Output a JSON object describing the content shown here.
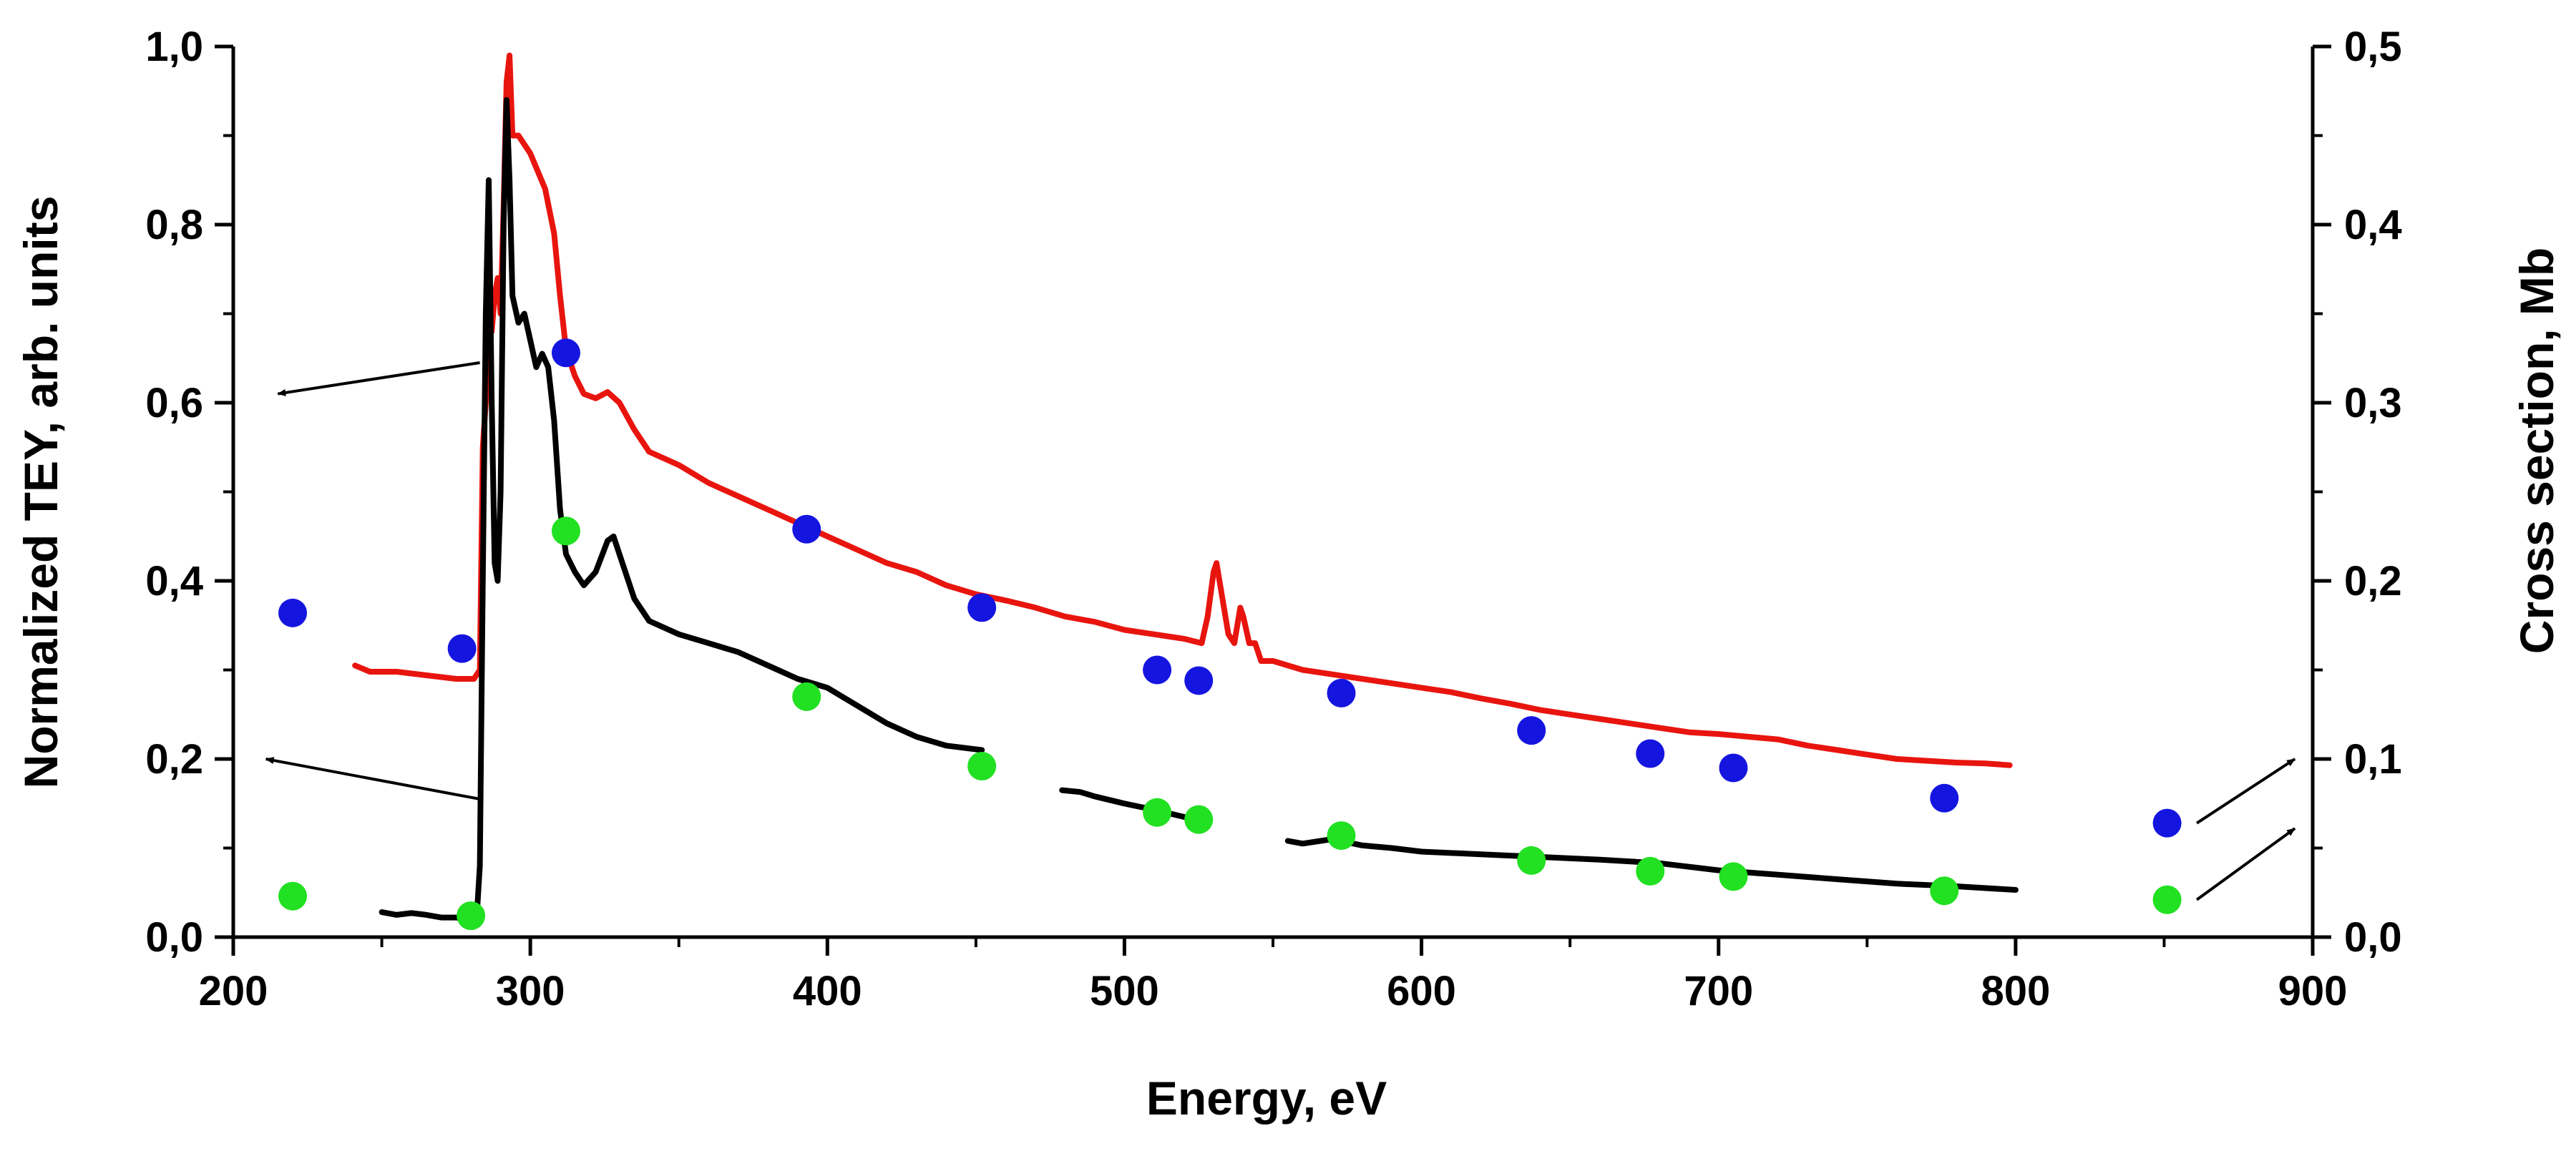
{
  "chart_data": {
    "type": "line+scatter",
    "xlabel": "Energy, eV",
    "ylabel_left": "Normalized TEY, arb. units",
    "ylabel_right": "Cross section, Mb",
    "xlim": [
      200,
      900
    ],
    "ylim_left": [
      0.0,
      1.0
    ],
    "ylim_right": [
      0.0,
      0.5
    ],
    "x_ticks": [
      "200",
      "300",
      "400",
      "500",
      "600",
      "700",
      "800",
      "900"
    ],
    "y_left_ticks": [
      "0,0",
      "0,2",
      "0,4",
      "0,6",
      "0,8",
      "1,0"
    ],
    "y_right_ticks": [
      "0,0",
      "0,1",
      "0,2",
      "0,3",
      "0,4",
      "0,5"
    ],
    "colors": {
      "red_line": "#e8150f",
      "black_line": "#000000",
      "blue_points": "#1515e0",
      "green_points": "#22e022"
    },
    "series": [
      {
        "name": "red TEY spectrum",
        "kind": "line",
        "axis": "left",
        "color": "#e8150f",
        "segments": [
          [
            [
              241,
              0.305
            ],
            [
              246,
              0.298
            ],
            [
              255,
              0.298
            ],
            [
              265,
              0.294
            ],
            [
              275,
              0.29
            ],
            [
              281,
              0.29
            ],
            [
              283,
              0.3
            ],
            [
              284,
              0.55
            ],
            [
              285,
              0.6
            ],
            [
              286,
              0.7
            ],
            [
              287,
              0.68
            ],
            [
              288,
              0.72
            ],
            [
              289,
              0.74
            ],
            [
              290,
              0.7
            ],
            [
              291,
              0.82
            ],
            [
              292,
              0.96
            ],
            [
              293,
              0.99
            ],
            [
              294,
              0.9
            ],
            [
              296,
              0.9
            ],
            [
              300,
              0.88
            ],
            [
              305,
              0.84
            ],
            [
              308,
              0.79
            ],
            [
              310,
              0.72
            ],
            [
              312,
              0.66
            ],
            [
              315,
              0.63
            ],
            [
              318,
              0.61
            ],
            [
              322,
              0.605
            ],
            [
              326,
              0.612
            ],
            [
              330,
              0.6
            ],
            [
              335,
              0.57
            ],
            [
              340,
              0.545
            ],
            [
              350,
              0.53
            ],
            [
              360,
              0.51
            ],
            [
              370,
              0.495
            ],
            [
              380,
              0.48
            ],
            [
              390,
              0.465
            ],
            [
              400,
              0.45
            ],
            [
              410,
              0.435
            ],
            [
              420,
              0.42
            ],
            [
              430,
              0.41
            ],
            [
              440,
              0.395
            ],
            [
              450,
              0.385
            ],
            [
              460,
              0.378
            ],
            [
              470,
              0.37
            ],
            [
              480,
              0.36
            ],
            [
              490,
              0.354
            ],
            [
              500,
              0.345
            ],
            [
              510,
              0.34
            ],
            [
              520,
              0.335
            ],
            [
              526,
              0.33
            ],
            [
              528,
              0.36
            ],
            [
              530,
              0.41
            ],
            [
              531,
              0.42
            ],
            [
              533,
              0.38
            ],
            [
              535,
              0.34
            ],
            [
              537,
              0.33
            ],
            [
              539,
              0.37
            ],
            [
              540,
              0.36
            ],
            [
              542,
              0.33
            ],
            [
              544,
              0.33
            ],
            [
              546,
              0.31
            ],
            [
              550,
              0.31
            ],
            [
              560,
              0.3
            ],
            [
              570,
              0.295
            ],
            [
              580,
              0.29
            ],
            [
              590,
              0.285
            ],
            [
              600,
              0.28
            ],
            [
              610,
              0.275
            ],
            [
              620,
              0.268
            ],
            [
              630,
              0.262
            ],
            [
              640,
              0.255
            ],
            [
              650,
              0.25
            ],
            [
              660,
              0.245
            ],
            [
              670,
              0.24
            ],
            [
              680,
              0.235
            ],
            [
              690,
              0.23
            ],
            [
              700,
              0.228
            ],
            [
              710,
              0.225
            ],
            [
              720,
              0.222
            ],
            [
              730,
              0.215
            ],
            [
              740,
              0.21
            ],
            [
              750,
              0.205
            ],
            [
              760,
              0.2
            ],
            [
              770,
              0.198
            ],
            [
              780,
              0.196
            ],
            [
              790,
              0.195
            ],
            [
              798,
              0.193
            ]
          ]
        ]
      },
      {
        "name": "black TEY spectrum",
        "kind": "line",
        "axis": "left",
        "color": "#000000",
        "segments": [
          [
            [
              250,
              0.028
            ],
            [
              255,
              0.025
            ],
            [
              260,
              0.027
            ],
            [
              265,
              0.025
            ],
            [
              270,
              0.022
            ],
            [
              275,
              0.022
            ],
            [
              280,
              0.02
            ],
            [
              282,
              0.025
            ],
            [
              283,
              0.08
            ],
            [
              284,
              0.4
            ],
            [
              285,
              0.7
            ],
            [
              286,
              0.85
            ],
            [
              287,
              0.6
            ],
            [
              288,
              0.42
            ],
            [
              289,
              0.4
            ],
            [
              290,
              0.5
            ],
            [
              291,
              0.8
            ],
            [
              292,
              0.94
            ],
            [
              293,
              0.85
            ],
            [
              294,
              0.72
            ],
            [
              296,
              0.69
            ],
            [
              298,
              0.7
            ],
            [
              300,
              0.67
            ],
            [
              302,
              0.64
            ],
            [
              304,
              0.655
            ],
            [
              306,
              0.64
            ],
            [
              308,
              0.58
            ],
            [
              310,
              0.48
            ],
            [
              312,
              0.43
            ],
            [
              315,
              0.41
            ],
            [
              318,
              0.395
            ],
            [
              322,
              0.41
            ],
            [
              326,
              0.445
            ],
            [
              328,
              0.45
            ],
            [
              331,
              0.42
            ],
            [
              335,
              0.38
            ],
            [
              340,
              0.355
            ],
            [
              350,
              0.34
            ],
            [
              360,
              0.33
            ],
            [
              370,
              0.32
            ],
            [
              380,
              0.305
            ],
            [
              390,
              0.29
            ],
            [
              400,
              0.28
            ],
            [
              410,
              0.26
            ],
            [
              420,
              0.24
            ],
            [
              430,
              0.225
            ],
            [
              440,
              0.215
            ],
            [
              452,
              0.21
            ]
          ],
          [
            [
              479,
              0.165
            ],
            [
              485,
              0.163
            ],
            [
              490,
              0.158
            ],
            [
              500,
              0.15
            ],
            [
              510,
              0.143
            ],
            [
              520,
              0.135
            ],
            [
              527,
              0.128
            ]
          ],
          [
            [
              555,
              0.108
            ],
            [
              560,
              0.105
            ],
            [
              570,
              0.11
            ],
            [
              580,
              0.103
            ],
            [
              590,
              0.1
            ],
            [
              600,
              0.096
            ],
            [
              620,
              0.093
            ],
            [
              640,
              0.09
            ],
            [
              660,
              0.087
            ],
            [
              680,
              0.083
            ],
            [
              700,
              0.075
            ],
            [
              720,
              0.07
            ],
            [
              740,
              0.065
            ],
            [
              760,
              0.06
            ],
            [
              780,
              0.057
            ],
            [
              800,
              0.053
            ]
          ]
        ]
      },
      {
        "name": "blue cross-section points",
        "kind": "scatter",
        "axis": "right",
        "color": "#1515e0",
        "points": [
          [
            220,
            0.182
          ],
          [
            277,
            0.162
          ],
          [
            312,
            0.328
          ],
          [
            393,
            0.229
          ],
          [
            452,
            0.185
          ],
          [
            511,
            0.15
          ],
          [
            525,
            0.144
          ],
          [
            573,
            0.137
          ],
          [
            637,
            0.116
          ],
          [
            677,
            0.103
          ],
          [
            705,
            0.095
          ],
          [
            776,
            0.078
          ],
          [
            851,
            0.064
          ]
        ]
      },
      {
        "name": "green cross-section points",
        "kind": "scatter",
        "axis": "right",
        "color": "#22e022",
        "points": [
          [
            220,
            0.023
          ],
          [
            280,
            0.012
          ],
          [
            312,
            0.228
          ],
          [
            393,
            0.135
          ],
          [
            452,
            0.096
          ],
          [
            511,
            0.07
          ],
          [
            525,
            0.066
          ],
          [
            573,
            0.057
          ],
          [
            637,
            0.043
          ],
          [
            677,
            0.037
          ],
          [
            705,
            0.034
          ],
          [
            776,
            0.026
          ],
          [
            851,
            0.021
          ]
        ]
      }
    ],
    "annotations": [
      {
        "type": "arrow",
        "meaning": "red spectrum refers to left axis",
        "from": [
          283,
          0.645
        ],
        "to": [
          215,
          0.61
        ]
      },
      {
        "type": "arrow",
        "meaning": "black spectrum refers to left axis",
        "from": [
          283,
          0.155
        ],
        "to": [
          211,
          0.2
        ]
      },
      {
        "type": "arrow",
        "meaning": "blue points refer to right axis",
        "from": [
          861,
          0.064
        ],
        "to": [
          894,
          0.1
        ]
      },
      {
        "type": "arrow",
        "meaning": "green points refer to right axis",
        "from": [
          861,
          0.021
        ],
        "to": [
          894,
          0.061
        ]
      }
    ]
  }
}
